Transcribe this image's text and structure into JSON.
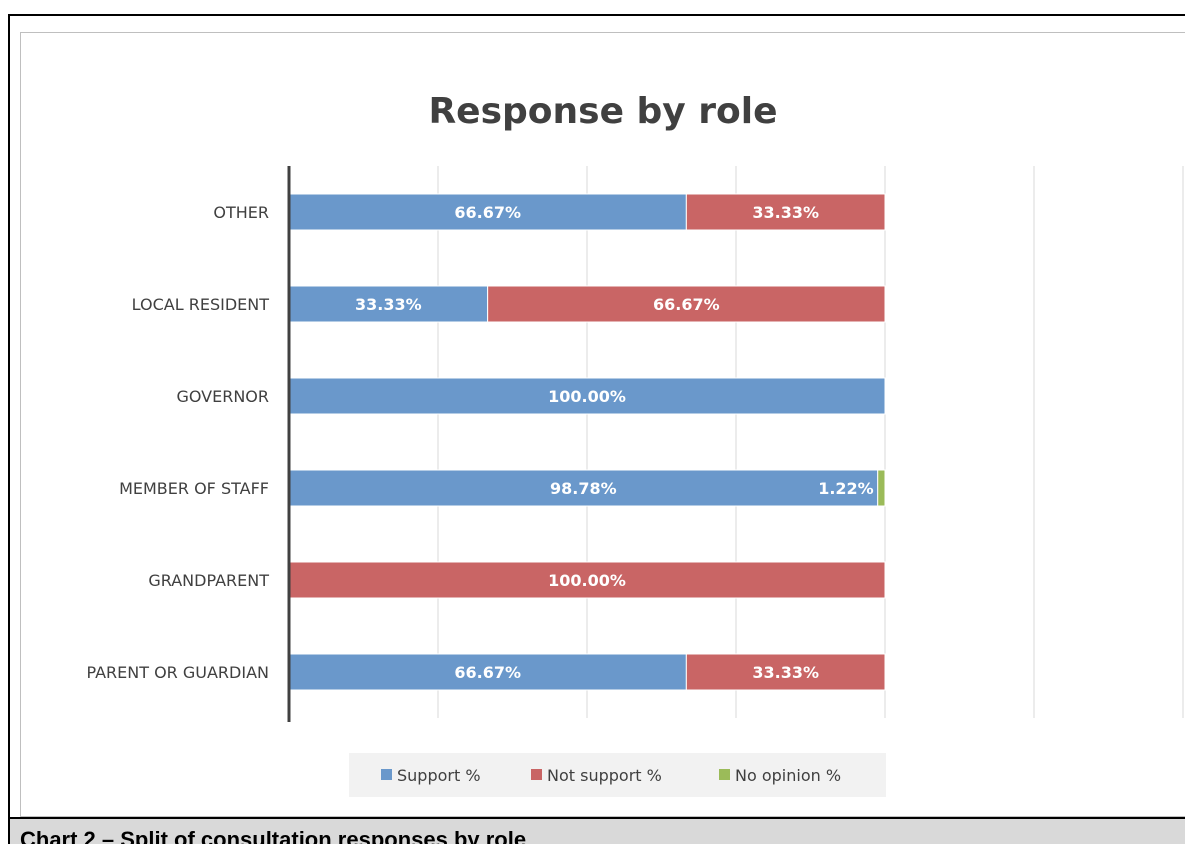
{
  "caption": "Chart 2 – Split of consultation responses by role",
  "chart_data": {
    "type": "bar",
    "orientation": "horizontal",
    "stacked": true,
    "title": "Response by role",
    "xlabel": "",
    "ylabel": "",
    "xlim": [
      0,
      1.5
    ],
    "grid": true,
    "legend_position": "bottom",
    "categories": [
      "PARENT OR GUARDIAN",
      "GRANDPARENT",
      "MEMBER OF STAFF",
      "GOVERNOR",
      "LOCAL RESIDENT",
      "OTHER"
    ],
    "series": [
      {
        "name": "Support %",
        "color": "#6a98cb",
        "values": [
          0.6667,
          0,
          0.9878,
          1.0,
          0.3333,
          0.6667
        ],
        "labels": [
          "66.67%",
          "",
          "98.78%",
          "100.00%",
          "33.33%",
          "66.67%"
        ]
      },
      {
        "name": "Not support %",
        "color": "#c96565",
        "values": [
          0.3333,
          1.0,
          0,
          0,
          0.6667,
          0.3333
        ],
        "labels": [
          "33.33%",
          "100.00%",
          "",
          "",
          "66.67%",
          "33.33%"
        ]
      },
      {
        "name": "No opinion %",
        "color": "#9bbb59",
        "values": [
          0,
          0,
          0.0122,
          0,
          0,
          0
        ],
        "labels": [
          "",
          "",
          "1.22%",
          "",
          "",
          ""
        ]
      }
    ]
  }
}
